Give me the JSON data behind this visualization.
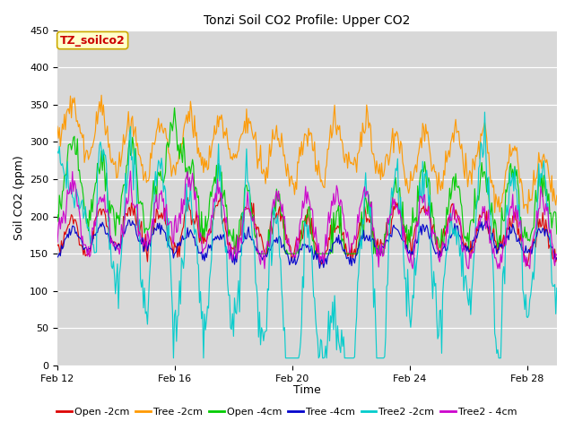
{
  "title": "Tonzi Soil CO2 Profile: Upper CO2",
  "xlabel": "Time",
  "ylabel": "Soil CO2 (ppm)",
  "ylim": [
    0,
    450
  ],
  "yticks": [
    0,
    50,
    100,
    150,
    200,
    250,
    300,
    350,
    400,
    450
  ],
  "xtick_labels": [
    "Feb 12",
    "Feb 16",
    "Feb 20",
    "Feb 24",
    "Feb 28"
  ],
  "plot_bg_color": "#d8d8d8",
  "annotation_label": "TZ_soilco2",
  "annotation_color": "#cc0000",
  "annotation_bg": "#ffffcc",
  "annotation_edge": "#ccaa00",
  "legend_entries": [
    "Open -2cm",
    "Tree -2cm",
    "Open -4cm",
    "Tree -4cm",
    "Tree2 -2cm",
    "Tree2 - 4cm"
  ],
  "line_colors": [
    "#dd0000",
    "#ff9900",
    "#00cc00",
    "#0000cc",
    "#00cccc",
    "#cc00cc"
  ],
  "n_points": 500,
  "n_days": 17,
  "seed": 42,
  "title_fontsize": 10,
  "axis_label_fontsize": 9,
  "tick_fontsize": 8,
  "legend_fontsize": 8
}
